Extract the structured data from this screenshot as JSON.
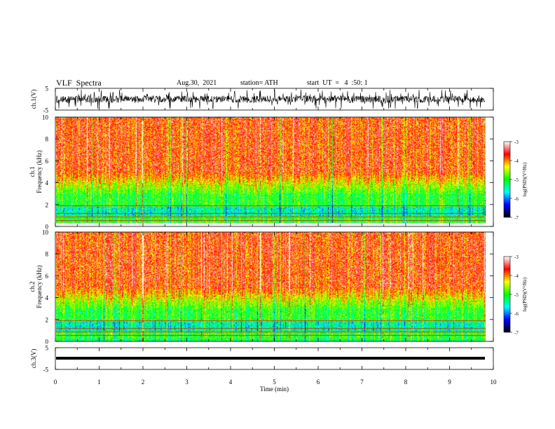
{
  "header": {
    "title": "VLF  Spectra",
    "date": "Aug.30,  2021",
    "station": "station= ATH",
    "start": "start  UT  =   4  :50: 1"
  },
  "chart_data": [
    {
      "type": "line",
      "name": "panel-ch1-waveform",
      "ylabel": "ch.1(V)",
      "yticks": [
        "5",
        "-5"
      ],
      "ylim": [
        -5,
        5
      ],
      "xlim": [
        0,
        10
      ]
    },
    {
      "type": "heatmap",
      "name": "panel-ch1-spectrogram",
      "ylabel": "ch.1\nFrequency  (kHz)",
      "ylabel_lines": [
        "ch.1",
        "Frequency  (kHz)"
      ],
      "yticks": [
        "0",
        "2",
        "4",
        "6",
        "8",
        "10"
      ],
      "ylim": [
        0,
        10
      ],
      "xlim": [
        0,
        10
      ],
      "colorbar": {
        "label": "log(PSD)(V²/Hz)",
        "ticks": [
          "-3",
          "-4",
          "-5",
          "-6",
          "-7"
        ],
        "range": [
          -7,
          -3
        ],
        "colors": [
          "#000000",
          "#0000ff",
          "#00ffff",
          "#00ff00",
          "#ffff00",
          "#ff0000",
          "#ffffff"
        ]
      }
    },
    {
      "type": "heatmap",
      "name": "panel-ch2-spectrogram",
      "ylabel": "ch.2\nFrequency  (kHz)",
      "ylabel_lines": [
        "ch.2",
        "Frequency  (kHz)"
      ],
      "yticks": [
        "0",
        "2",
        "4",
        "6",
        "8",
        "10"
      ],
      "ylim": [
        0,
        10
      ],
      "xlim": [
        0,
        10
      ],
      "colorbar": {
        "label": "log(PSD)(V²/Hz)",
        "ticks": [
          "-3",
          "-4",
          "-5",
          "-6",
          "-7"
        ],
        "range": [
          -7,
          -3
        ],
        "colors": [
          "#000000",
          "#0000ff",
          "#00ffff",
          "#00ff00",
          "#ffff00",
          "#ff0000",
          "#ffffff"
        ]
      }
    },
    {
      "type": "line",
      "name": "panel-ch3-waveform",
      "ylabel": "ch.3(V)",
      "yticks": [
        "5",
        "-5"
      ],
      "ylim": [
        -5,
        5
      ],
      "xlim": [
        0,
        10
      ],
      "xlabel": "Time  (min)",
      "xticks": [
        "0",
        "1",
        "2",
        "3",
        "4",
        "5",
        "6",
        "7",
        "8",
        "9",
        "10"
      ]
    }
  ]
}
